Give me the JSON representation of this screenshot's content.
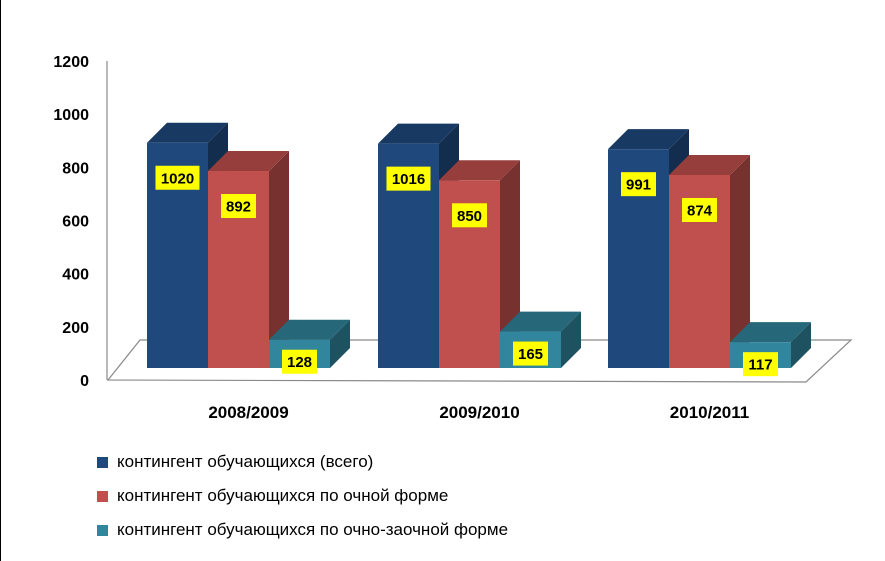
{
  "chart_data": {
    "type": "bar",
    "title": "",
    "xlabel": "",
    "ylabel": "",
    "ylim": [
      0,
      1200
    ],
    "yticks": [
      0,
      200,
      400,
      600,
      800,
      1000,
      1200
    ],
    "categories": [
      "2008/2009",
      "2009/2010",
      "2010/2011"
    ],
    "series": [
      {
        "name": "контингент обучающихся (всего)",
        "values": [
          1020,
          1016,
          991
        ],
        "color": "#1F497D"
      },
      {
        "name": "контингент обучающихся по очной форме",
        "values": [
          892,
          850,
          874
        ],
        "color": "#C0504D"
      },
      {
        "name": "контингент обучающихся по очно-заочной форме",
        "values": [
          128,
          165,
          117
        ],
        "color": "#31859C"
      }
    ],
    "data_label_background": "#FFFF00",
    "legend_position": "bottom-left",
    "grid": false,
    "three_d": true
  }
}
